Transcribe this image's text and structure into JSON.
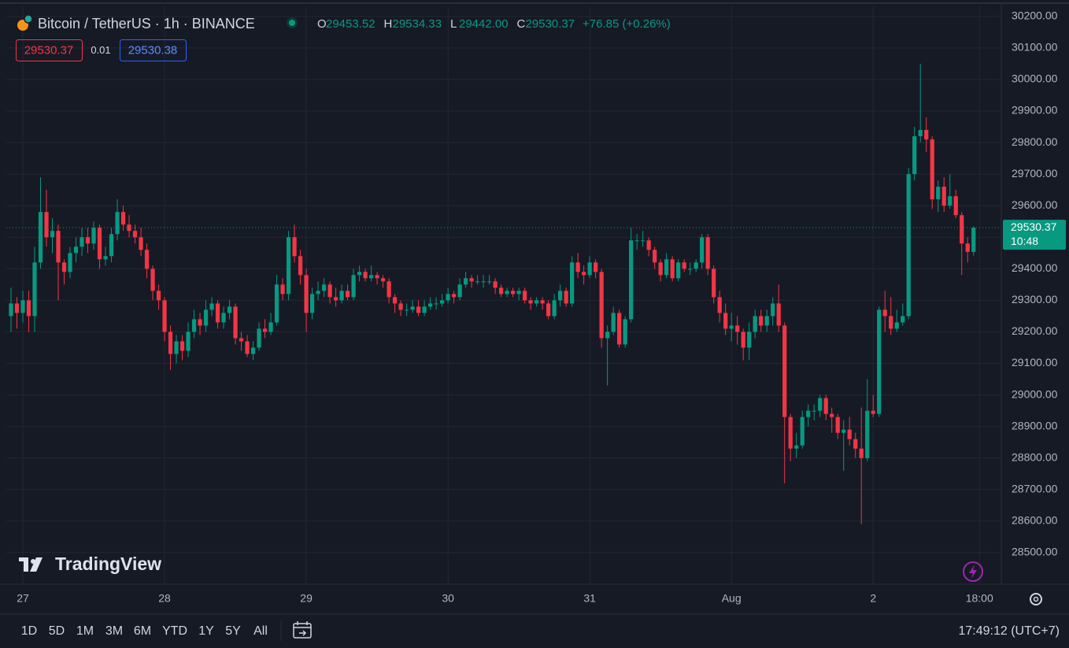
{
  "chart_data": {
    "type": "candlestick",
    "symbol": "Bitcoin / TetherUS · 1h · BINANCE",
    "ohlc_legend": [
      {
        "key": "O",
        "value": "29453.52"
      },
      {
        "key": "H",
        "value": "29534.33"
      },
      {
        "key": "L",
        "value": "29442.00"
      },
      {
        "key": "C",
        "value": "29530.37"
      }
    ],
    "change": "+76.85 (+0.26%)",
    "sell_price": "29530.37",
    "spread": "0.01",
    "buy_price": "29530.38",
    "countdown": "10:48",
    "watermark": "TradingView",
    "up_color": "#089981",
    "down_color": "#f23645",
    "grid": true,
    "xlim": [
      -0.8,
      167.7
    ],
    "xticks": [
      {
        "value": 2,
        "label": "27"
      },
      {
        "value": 26,
        "label": "28"
      },
      {
        "value": 50,
        "label": "29"
      },
      {
        "value": 74,
        "label": "30"
      },
      {
        "value": 98,
        "label": "31"
      },
      {
        "value": 122,
        "label": "Aug"
      },
      {
        "value": 146,
        "label": "2"
      },
      {
        "value": 164,
        "label": "18:00"
      }
    ],
    "ylim": [
      28400,
      30232
    ],
    "yticks": [
      {
        "value": 28500,
        "label": "28500.00"
      },
      {
        "value": 28600,
        "label": "28600.00"
      },
      {
        "value": 28700,
        "label": "28700.00"
      },
      {
        "value": 28800,
        "label": "28800.00"
      },
      {
        "value": 28900,
        "label": "28900.00"
      },
      {
        "value": 29000,
        "label": "29000.00"
      },
      {
        "value": 29100,
        "label": "29100.00"
      },
      {
        "value": 29200,
        "label": "29200.00"
      },
      {
        "value": 29300,
        "label": "29300.00"
      },
      {
        "value": 29400,
        "label": "29400.00"
      },
      {
        "value": 29500,
        "label": "29500.00"
      },
      {
        "value": 29600,
        "label": "29600.00"
      },
      {
        "value": 29700,
        "label": "29700.00"
      },
      {
        "value": 29800,
        "label": "29800.00"
      },
      {
        "value": 29900,
        "label": "29900.00"
      },
      {
        "value": 30000,
        "label": "30000.00"
      },
      {
        "value": 30100,
        "label": "30100.00"
      },
      {
        "value": 30200,
        "label": "30200.00"
      }
    ],
    "candles": [
      [
        29250,
        29340,
        29200,
        29290
      ],
      [
        29290,
        29310,
        29210,
        29260
      ],
      [
        29260,
        29330,
        29230,
        29300
      ],
      [
        29300,
        29330,
        29200,
        29250
      ],
      [
        29250,
        29470,
        29200,
        29420
      ],
      [
        29420,
        29690,
        29400,
        29580
      ],
      [
        29580,
        29650,
        29470,
        29500
      ],
      [
        29500,
        29560,
        29450,
        29520
      ],
      [
        29520,
        29540,
        29300,
        29420
      ],
      [
        29420,
        29430,
        29350,
        29390
      ],
      [
        29390,
        29470,
        29370,
        29450
      ],
      [
        29450,
        29500,
        29420,
        29470
      ],
      [
        29470,
        29530,
        29440,
        29500
      ],
      [
        29500,
        29530,
        29450,
        29480
      ],
      [
        29480,
        29550,
        29460,
        29530
      ],
      [
        29530,
        29540,
        29400,
        29430
      ],
      [
        29430,
        29470,
        29410,
        29440
      ],
      [
        29440,
        29530,
        29420,
        29510
      ],
      [
        29510,
        29620,
        29490,
        29580
      ],
      [
        29580,
        29600,
        29520,
        29540
      ],
      [
        29540,
        29570,
        29500,
        29520
      ],
      [
        29520,
        29540,
        29480,
        29500
      ],
      [
        29500,
        29530,
        29440,
        29460
      ],
      [
        29460,
        29480,
        29370,
        29400
      ],
      [
        29400,
        29410,
        29300,
        29330
      ],
      [
        29330,
        29350,
        29270,
        29300
      ],
      [
        29300,
        29310,
        29170,
        29200
      ],
      [
        29200,
        29220,
        29080,
        29130
      ],
      [
        29130,
        29190,
        29100,
        29170
      ],
      [
        29170,
        29190,
        29110,
        29140
      ],
      [
        29140,
        29230,
        29120,
        29200
      ],
      [
        29200,
        29270,
        29180,
        29240
      ],
      [
        29240,
        29260,
        29190,
        29220
      ],
      [
        29220,
        29300,
        29200,
        29270
      ],
      [
        29270,
        29310,
        29250,
        29290
      ],
      [
        29290,
        29300,
        29210,
        29230
      ],
      [
        29230,
        29280,
        29210,
        29260
      ],
      [
        29260,
        29300,
        29240,
        29280
      ],
      [
        29280,
        29290,
        29160,
        29180
      ],
      [
        29180,
        29200,
        29140,
        29170
      ],
      [
        29170,
        29190,
        29120,
        29130
      ],
      [
        29130,
        29170,
        29110,
        29150
      ],
      [
        29150,
        29230,
        29140,
        29210
      ],
      [
        29210,
        29240,
        29180,
        29200
      ],
      [
        29200,
        29260,
        29190,
        29230
      ],
      [
        29230,
        29380,
        29220,
        29350
      ],
      [
        29350,
        29370,
        29300,
        29320
      ],
      [
        29320,
        29520,
        29300,
        29500
      ],
      [
        29500,
        29540,
        29420,
        29440
      ],
      [
        29440,
        29460,
        29350,
        29380
      ],
      [
        29380,
        29400,
        29200,
        29260
      ],
      [
        29260,
        29340,
        29240,
        29320
      ],
      [
        29320,
        29360,
        29300,
        29330
      ],
      [
        29330,
        29370,
        29310,
        29350
      ],
      [
        29350,
        29360,
        29290,
        29310
      ],
      [
        29310,
        29340,
        29280,
        29300
      ],
      [
        29300,
        29350,
        29290,
        29330
      ],
      [
        29330,
        29350,
        29300,
        29310
      ],
      [
        29310,
        29400,
        29300,
        29380
      ],
      [
        29380,
        29410,
        29360,
        29390
      ],
      [
        29390,
        29400,
        29360,
        29370
      ],
      [
        29370,
        29410,
        29360,
        29380
      ],
      [
        29380,
        29390,
        29350,
        29370
      ],
      [
        29370,
        29380,
        29340,
        29360
      ],
      [
        29360,
        29370,
        29290,
        29310
      ],
      [
        29310,
        29320,
        29260,
        29290
      ],
      [
        29290,
        29300,
        29250,
        29270
      ],
      [
        29270,
        29290,
        29250,
        29270
      ],
      [
        29270,
        29300,
        29260,
        29280
      ],
      [
        29280,
        29300,
        29250,
        29260
      ],
      [
        29260,
        29300,
        29250,
        29280
      ],
      [
        29280,
        29310,
        29270,
        29290
      ],
      [
        29290,
        29310,
        29270,
        29290
      ],
      [
        29290,
        29320,
        29280,
        29300
      ],
      [
        29300,
        29340,
        29290,
        29320
      ],
      [
        29320,
        29330,
        29290,
        29310
      ],
      [
        29310,
        29370,
        29300,
        29350
      ],
      [
        29350,
        29390,
        29340,
        29370
      ],
      [
        29370,
        29380,
        29340,
        29360
      ],
      [
        29360,
        29380,
        29350,
        29360
      ],
      [
        29360,
        29380,
        29340,
        29360
      ],
      [
        29360,
        29380,
        29350,
        29360
      ],
      [
        29360,
        29370,
        29320,
        29340
      ],
      [
        29340,
        29350,
        29310,
        29320
      ],
      [
        29320,
        29340,
        29310,
        29330
      ],
      [
        29330,
        29340,
        29310,
        29320
      ],
      [
        29320,
        29340,
        29300,
        29330
      ],
      [
        29330,
        29340,
        29290,
        29300
      ],
      [
        29300,
        29310,
        29270,
        29290
      ],
      [
        29290,
        29310,
        29280,
        29300
      ],
      [
        29300,
        29310,
        29270,
        29290
      ],
      [
        29290,
        29300,
        29240,
        29250
      ],
      [
        29250,
        29320,
        29240,
        29300
      ],
      [
        29300,
        29350,
        29280,
        29330
      ],
      [
        29330,
        29340,
        29280,
        29290
      ],
      [
        29290,
        29440,
        29280,
        29420
      ],
      [
        29420,
        29450,
        29370,
        29390
      ],
      [
        29390,
        29410,
        29350,
        29380
      ],
      [
        29380,
        29440,
        29370,
        29420
      ],
      [
        29420,
        29430,
        29370,
        29390
      ],
      [
        29390,
        29400,
        29150,
        29180
      ],
      [
        29180,
        29220,
        29030,
        29200
      ],
      [
        29200,
        29280,
        29190,
        29260
      ],
      [
        29260,
        29270,
        29150,
        29160
      ],
      [
        29160,
        29250,
        29150,
        29240
      ],
      [
        29240,
        29530,
        29230,
        29490
      ],
      [
        29490,
        29510,
        29460,
        29490
      ],
      [
        29490,
        29520,
        29470,
        29490
      ],
      [
        29490,
        29500,
        29440,
        29460
      ],
      [
        29460,
        29470,
        29400,
        29420
      ],
      [
        29420,
        29430,
        29360,
        29380
      ],
      [
        29380,
        29450,
        29370,
        29430
      ],
      [
        29430,
        29440,
        29360,
        29370
      ],
      [
        29370,
        29430,
        29360,
        29420
      ],
      [
        29420,
        29430,
        29390,
        29400
      ],
      [
        29400,
        29420,
        29380,
        29400
      ],
      [
        29400,
        29430,
        29390,
        29420
      ],
      [
        29420,
        29510,
        29400,
        29500
      ],
      [
        29500,
        29510,
        29380,
        29400
      ],
      [
        29400,
        29410,
        29290,
        29310
      ],
      [
        29310,
        29330,
        29230,
        29260
      ],
      [
        29260,
        29290,
        29190,
        29210
      ],
      [
        29210,
        29260,
        29170,
        29220
      ],
      [
        29220,
        29250,
        29160,
        29200
      ],
      [
        29200,
        29210,
        29110,
        29150
      ],
      [
        29150,
        29230,
        29110,
        29200
      ],
      [
        29200,
        29270,
        29180,
        29250
      ],
      [
        29250,
        29270,
        29200,
        29220
      ],
      [
        29220,
        29270,
        29200,
        29250
      ],
      [
        29250,
        29310,
        29220,
        29290
      ],
      [
        29290,
        29350,
        29200,
        29220
      ],
      [
        29220,
        29230,
        28720,
        28930
      ],
      [
        28930,
        28940,
        28790,
        28830
      ],
      [
        28830,
        28880,
        28800,
        28840
      ],
      [
        28840,
        28950,
        28830,
        28930
      ],
      [
        28930,
        28970,
        28900,
        28950
      ],
      [
        28950,
        28970,
        28920,
        28950
      ],
      [
        28950,
        29000,
        28930,
        28990
      ],
      [
        28990,
        29000,
        28920,
        28940
      ],
      [
        28940,
        28960,
        28880,
        28930
      ],
      [
        28930,
        28940,
        28860,
        28880
      ],
      [
        28880,
        28920,
        28760,
        28890
      ],
      [
        28890,
        28930,
        28840,
        28860
      ],
      [
        28860,
        28880,
        28800,
        28830
      ],
      [
        28830,
        28960,
        28590,
        28800
      ],
      [
        28800,
        29050,
        28790,
        28950
      ],
      [
        28950,
        29000,
        28930,
        28940
      ],
      [
        28940,
        29280,
        28930,
        29270
      ],
      [
        29270,
        29330,
        29200,
        29250
      ],
      [
        29250,
        29310,
        29190,
        29210
      ],
      [
        29210,
        29270,
        29200,
        29230
      ],
      [
        29230,
        29290,
        29220,
        29250
      ],
      [
        29250,
        29720,
        29240,
        29700
      ],
      [
        29700,
        29850,
        29680,
        29820
      ],
      [
        29820,
        30050,
        29800,
        29840
      ],
      [
        29840,
        29880,
        29770,
        29810
      ],
      [
        29810,
        29820,
        29590,
        29620
      ],
      [
        29620,
        29680,
        29580,
        29660
      ],
      [
        29660,
        29690,
        29580,
        29600
      ],
      [
        29600,
        29700,
        29590,
        29630
      ],
      [
        29630,
        29650,
        29560,
        29570
      ],
      [
        29570,
        29580,
        29380,
        29480
      ],
      [
        29480,
        29500,
        29420,
        29453.52
      ],
      [
        29453.52,
        29534.33,
        29442,
        29530.37
      ]
    ]
  },
  "toolbar": {
    "ranges": [
      "1D",
      "5D",
      "1M",
      "3M",
      "6M",
      "YTD",
      "1Y",
      "5Y",
      "All"
    ],
    "clock": "17:49:12 (UTC+7)"
  }
}
